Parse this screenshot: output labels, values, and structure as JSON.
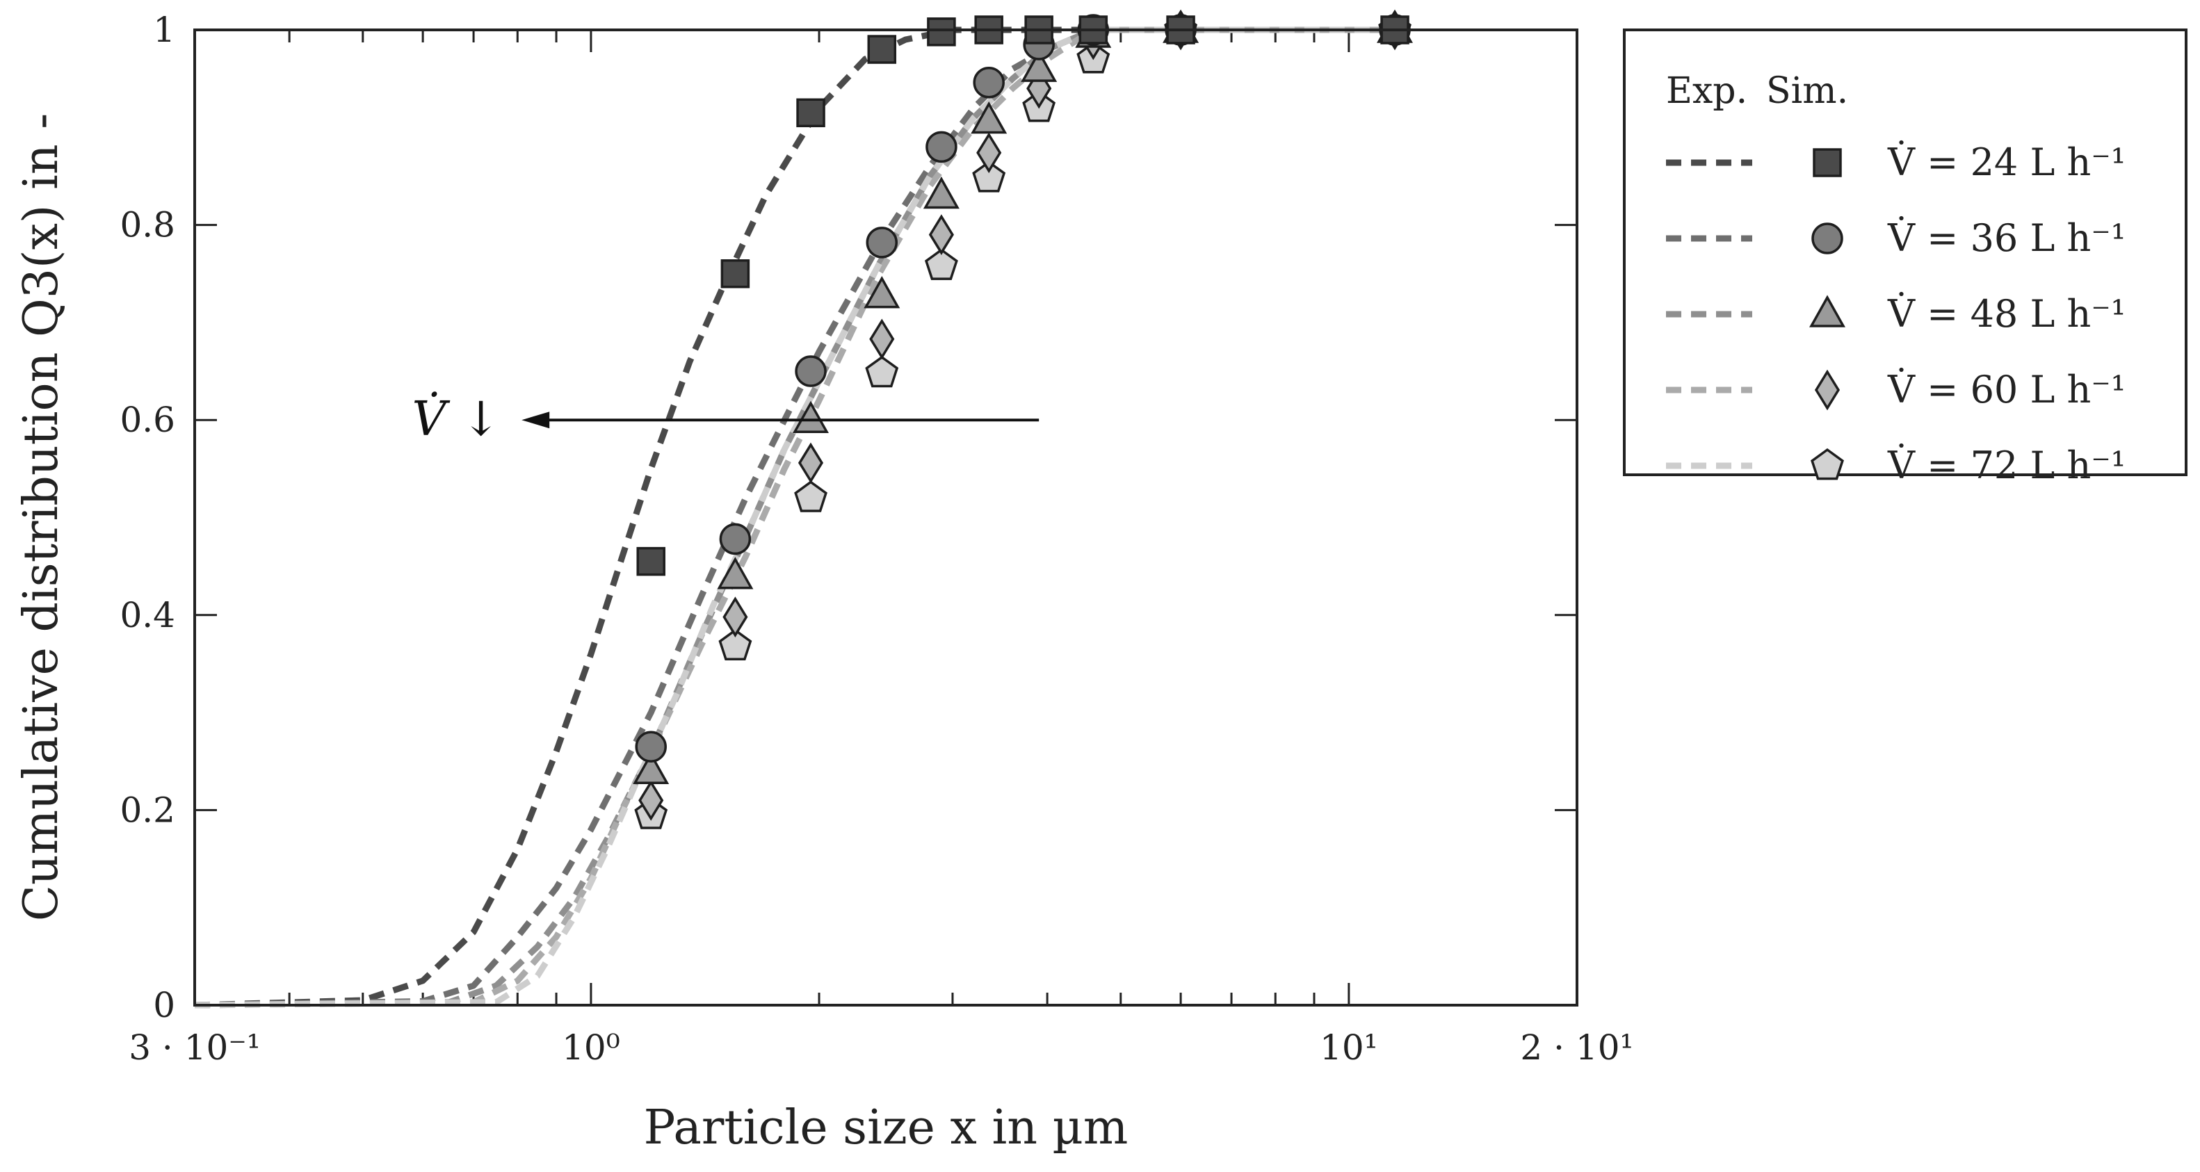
{
  "chart_data": {
    "type": "scatter",
    "x_scale": "log",
    "xlim": [
      0.3,
      20
    ],
    "ylim": [
      0,
      1
    ],
    "xlabel": "Particle size x in µm",
    "ylabel": "Cumulative distribution Q3(x) in -",
    "x_ticks": [
      {
        "value": 0.3,
        "label": "3 · 10⁻¹"
      },
      {
        "value": 1,
        "label": "10⁰"
      },
      {
        "value": 10,
        "label": "10¹"
      },
      {
        "value": 20,
        "label": "2 · 10¹"
      }
    ],
    "y_ticks": [
      {
        "value": 0,
        "label": "0"
      },
      {
        "value": 0.2,
        "label": "0.2"
      },
      {
        "value": 0.4,
        "label": "0.4"
      },
      {
        "value": 0.6,
        "label": "0.6"
      },
      {
        "value": 0.8,
        "label": "0.8"
      },
      {
        "value": 1,
        "label": "1"
      }
    ],
    "legend": {
      "header_exp": "Exp.",
      "header_sim": "Sim.",
      "position": "outside-right-top"
    },
    "annotation": {
      "text": "V̇ ↓",
      "from_x": 3.9,
      "to_x": 0.81,
      "y": 0.6
    },
    "series": [
      {
        "name": "V̇ = 24 L h⁻¹",
        "marker": "square",
        "line_color": "#4a4a4a",
        "marker_color": "#4a4a4a",
        "exp_x": [
          1.2,
          1.55,
          1.95,
          2.42,
          2.9,
          3.35,
          3.9,
          4.6,
          6.0,
          11.5
        ],
        "exp_y": [
          0.455,
          0.75,
          0.915,
          0.98,
          0.998,
          1.0,
          1.0,
          1.0,
          1.0,
          1.0
        ],
        "sim_x": [
          0.3,
          0.5,
          0.6,
          0.7,
          0.8,
          0.9,
          1.0,
          1.1,
          1.2,
          1.35,
          1.5,
          1.7,
          2.0,
          2.3,
          2.6,
          3.0,
          4.0,
          6.0,
          10.0,
          12.0
        ],
        "sim_y": [
          0.0,
          0.005,
          0.025,
          0.075,
          0.16,
          0.26,
          0.36,
          0.46,
          0.55,
          0.66,
          0.74,
          0.83,
          0.92,
          0.97,
          0.99,
          1.0,
          1.0,
          1.0,
          1.0,
          1.0
        ]
      },
      {
        "name": "V̇ = 36 L h⁻¹",
        "marker": "circle",
        "line_color": "#6f6f6f",
        "marker_color": "#7d7d7d",
        "exp_x": [
          1.2,
          1.55,
          1.95,
          2.42,
          2.9,
          3.35,
          3.9,
          4.6,
          6.0,
          11.5
        ],
        "exp_y": [
          0.265,
          0.478,
          0.65,
          0.782,
          0.88,
          0.946,
          0.985,
          1.0,
          1.0,
          1.0
        ],
        "sim_x": [
          0.3,
          0.6,
          0.7,
          0.8,
          0.9,
          1.0,
          1.2,
          1.4,
          1.6,
          1.8,
          2.0,
          2.4,
          2.8,
          3.2,
          3.6,
          4.0,
          4.6,
          6.0,
          10.0,
          12.0
        ],
        "sim_y": [
          0.0,
          0.004,
          0.02,
          0.07,
          0.12,
          0.18,
          0.3,
          0.42,
          0.52,
          0.6,
          0.67,
          0.78,
          0.86,
          0.92,
          0.96,
          0.98,
          1.0,
          1.0,
          1.0,
          1.0
        ]
      },
      {
        "name": "V̇ = 48 L h⁻¹",
        "marker": "triangle",
        "line_color": "#8f8f8f",
        "marker_color": "#9a9a9a",
        "exp_x": [
          1.2,
          1.55,
          1.95,
          2.42,
          2.9,
          3.35,
          3.9,
          4.6,
          6.0,
          11.5
        ],
        "exp_y": [
          0.24,
          0.44,
          0.6,
          0.728,
          0.83,
          0.907,
          0.96,
          0.995,
          1.0,
          1.0
        ],
        "sim_x": [
          0.3,
          0.65,
          0.75,
          0.85,
          0.95,
          1.05,
          1.2,
          1.4,
          1.6,
          1.8,
          2.0,
          2.4,
          2.8,
          3.2,
          3.6,
          4.0,
          4.6,
          6.0,
          10.0,
          12.0
        ],
        "sim_y": [
          0.0,
          0.003,
          0.02,
          0.06,
          0.11,
          0.17,
          0.26,
          0.38,
          0.48,
          0.57,
          0.64,
          0.76,
          0.85,
          0.91,
          0.95,
          0.98,
          1.0,
          1.0,
          1.0,
          1.0
        ]
      },
      {
        "name": "V̇ = 60 L h⁻¹",
        "marker": "diamond",
        "line_color": "#aaaaaa",
        "marker_color": "#b4b4b4",
        "exp_x": [
          1.2,
          1.55,
          1.95,
          2.42,
          2.9,
          3.35,
          3.9,
          4.6,
          6.0,
          11.5
        ],
        "exp_y": [
          0.21,
          0.398,
          0.556,
          0.683,
          0.79,
          0.874,
          0.94,
          0.99,
          1.0,
          1.0
        ],
        "sim_x": [
          0.3,
          0.7,
          0.8,
          0.9,
          1.0,
          1.1,
          1.2,
          1.4,
          1.6,
          1.8,
          2.0,
          2.4,
          2.8,
          3.2,
          3.6,
          4.0,
          4.6,
          6.0,
          10.0,
          12.0
        ],
        "sim_y": [
          0.0,
          0.003,
          0.025,
          0.07,
          0.13,
          0.2,
          0.26,
          0.37,
          0.46,
          0.55,
          0.62,
          0.75,
          0.84,
          0.9,
          0.94,
          0.97,
          1.0,
          1.0,
          1.0,
          1.0
        ]
      },
      {
        "name": "V̇ = 72 L h⁻¹",
        "marker": "pentagon",
        "line_color": "#cdcdcd",
        "marker_color": "#d2d2d2",
        "exp_x": [
          1.2,
          1.55,
          1.95,
          2.42,
          2.9,
          3.35,
          3.9,
          4.6,
          6.0,
          11.5
        ],
        "exp_y": [
          0.195,
          0.368,
          0.52,
          0.648,
          0.758,
          0.848,
          0.92,
          0.97,
          1.0,
          1.0
        ],
        "sim_x": [
          0.3,
          0.75,
          0.85,
          0.95,
          1.05,
          1.15,
          1.3,
          1.45,
          1.6,
          1.8,
          2.0,
          2.4,
          2.8,
          3.2,
          3.6,
          4.0,
          4.6,
          6.0,
          10.0,
          12.0
        ],
        "sim_y": [
          0.0,
          0.003,
          0.03,
          0.09,
          0.16,
          0.23,
          0.32,
          0.41,
          0.48,
          0.57,
          0.64,
          0.76,
          0.85,
          0.91,
          0.95,
          0.98,
          1.0,
          1.0,
          1.0,
          1.0
        ]
      }
    ]
  }
}
